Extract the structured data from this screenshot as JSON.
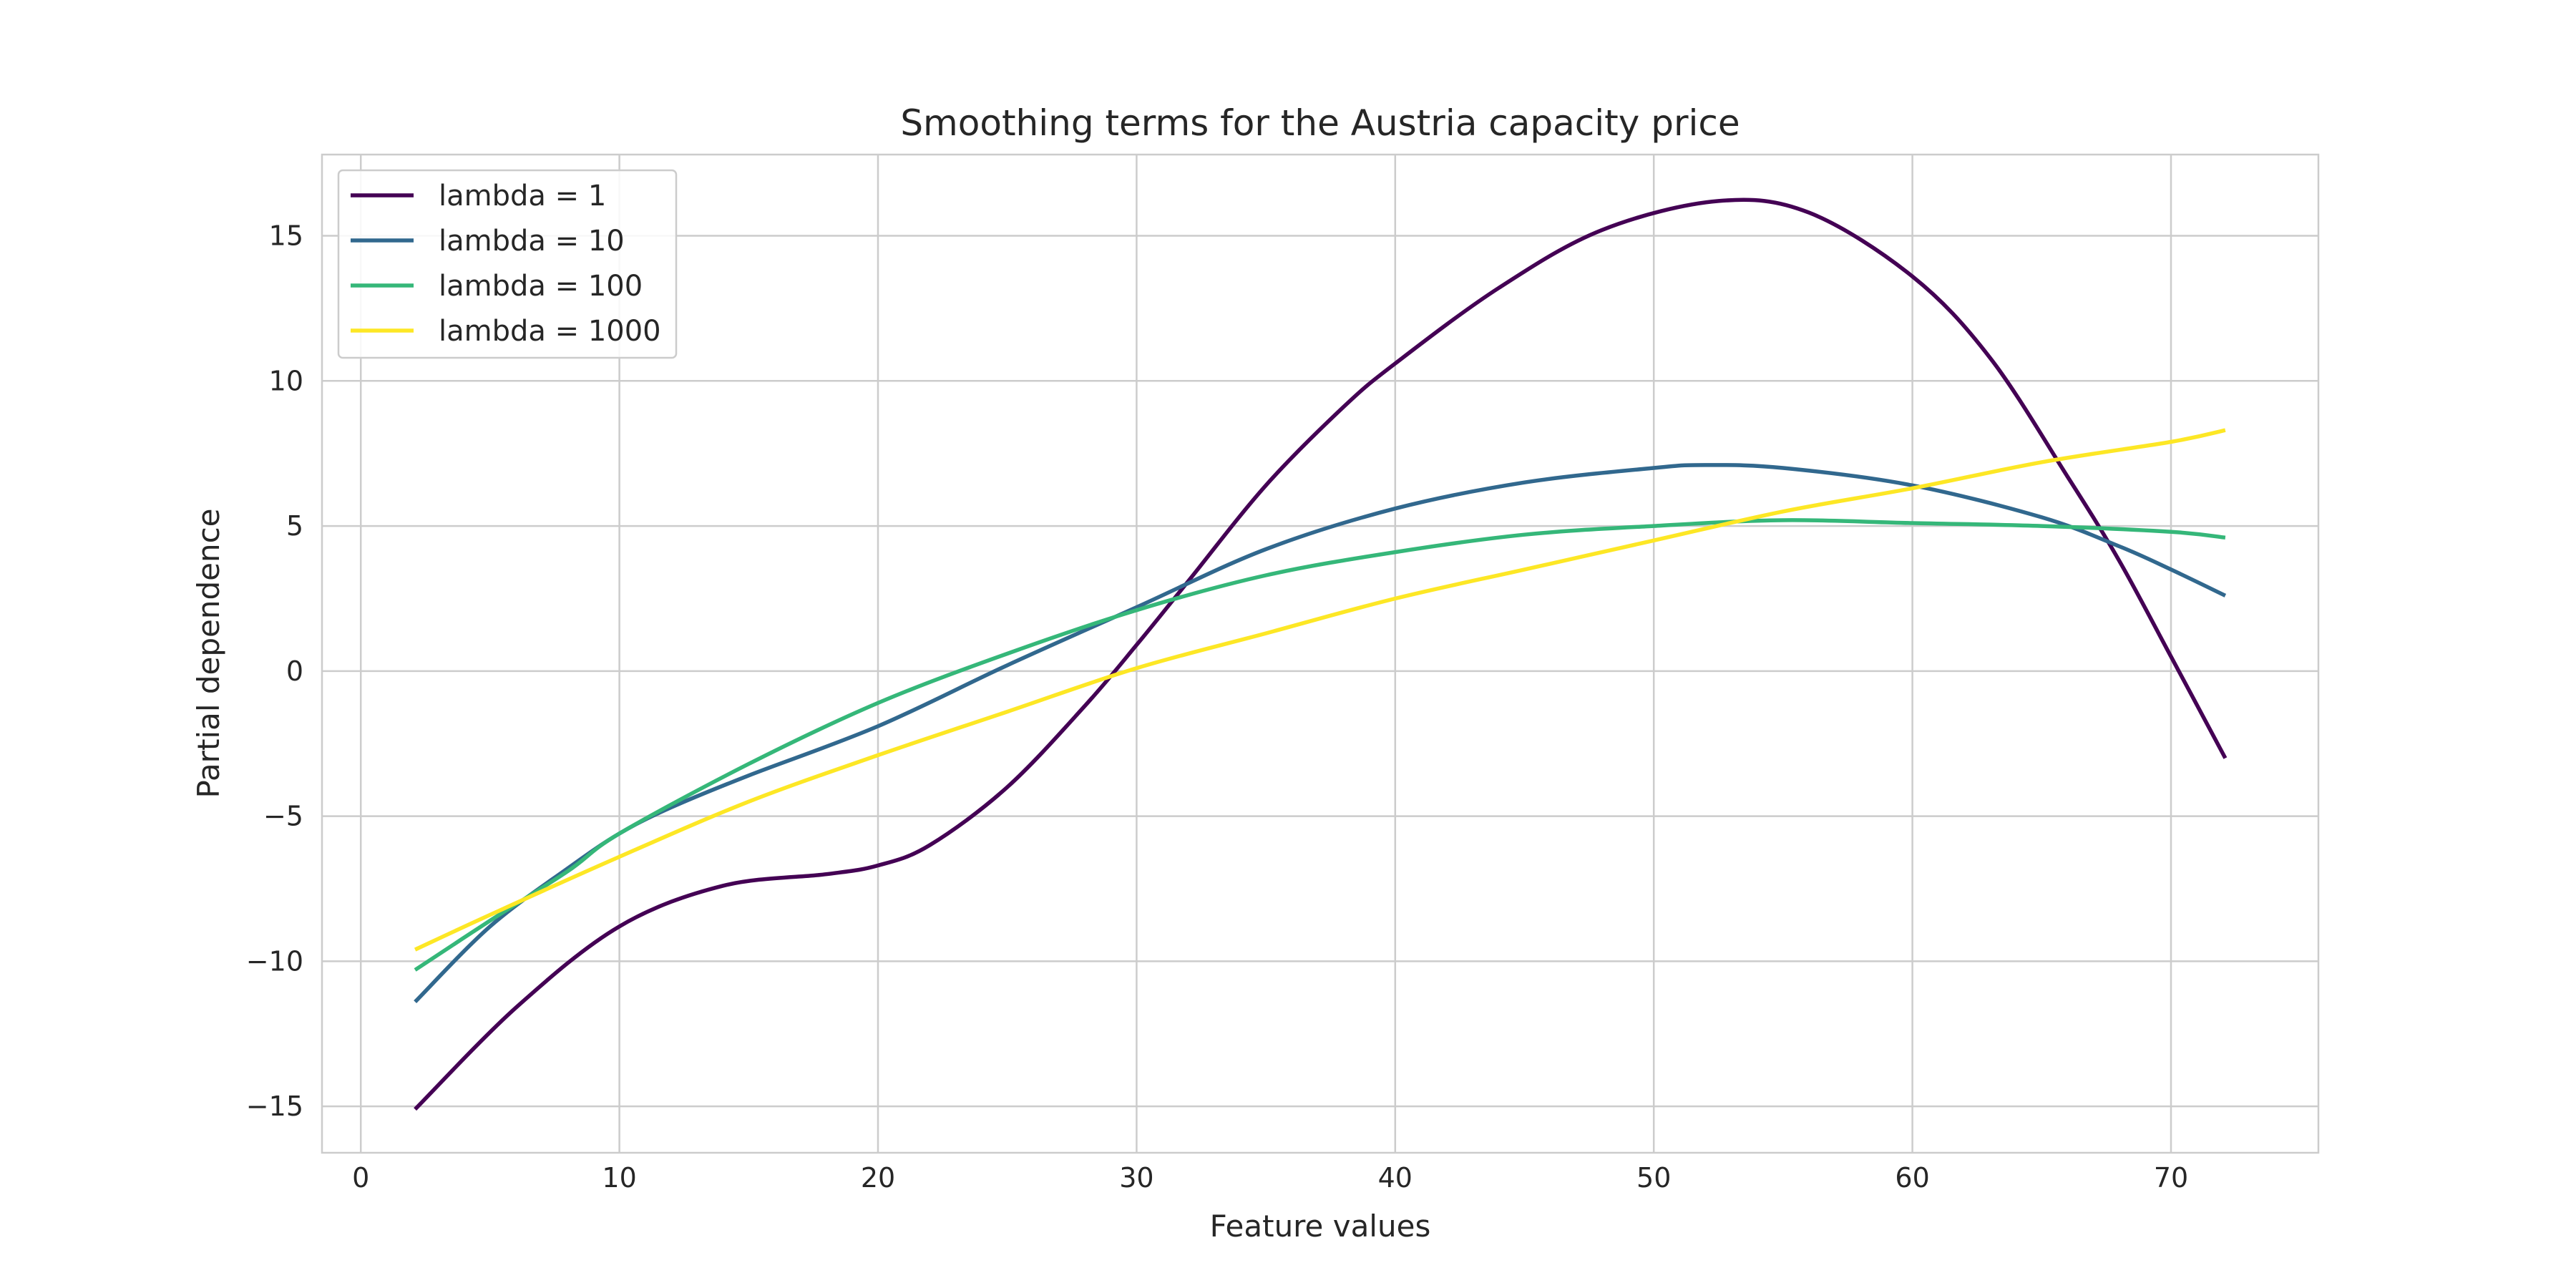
{
  "chart_data": {
    "type": "line",
    "title": "Smoothing terms for the Austria capacity price",
    "xlabel": "Feature values",
    "ylabel": "Partial dependence",
    "xlim": [
      -1.5,
      75.7
    ],
    "ylim": [
      -16.6,
      17.8
    ],
    "xticks": [
      0,
      10,
      20,
      30,
      40,
      50,
      60,
      70
    ],
    "yticks": [
      -15,
      -10,
      -5,
      0,
      5,
      10,
      15
    ],
    "xtick_labels": [
      "0",
      "10",
      "20",
      "30",
      "40",
      "50",
      "60",
      "70"
    ],
    "ytick_labels": [
      "−15",
      "−10",
      "−5",
      "0",
      "5",
      "10",
      "15"
    ],
    "grid": true,
    "legend_position": "top-left",
    "series": [
      {
        "name": "lambda = 1",
        "color": "#440154",
        "x": [
          2.1,
          6,
          10,
          14,
          18,
          20,
          22,
          25,
          28,
          30,
          32,
          35,
          38,
          40,
          44,
          48,
          52.5,
          56,
          60,
          63,
          66,
          68,
          70,
          72.1
        ],
        "y": [
          -15.1,
          -11.6,
          -8.8,
          -7.4,
          -7.0,
          -6.7,
          -6.0,
          -4.0,
          -1.2,
          0.9,
          3.1,
          6.4,
          9.1,
          10.6,
          13.2,
          15.2,
          16.2,
          15.8,
          13.6,
          10.8,
          6.7,
          3.8,
          0.5,
          -3.0
        ]
      },
      {
        "name": "lambda = 10",
        "color": "#31688e",
        "x": [
          2.1,
          5,
          8,
          10,
          12,
          15,
          20,
          25,
          30,
          35,
          40,
          45,
          50,
          52,
          55,
          60,
          65,
          68,
          70,
          72.1
        ],
        "y": [
          -11.4,
          -8.8,
          -6.8,
          -5.6,
          -4.7,
          -3.6,
          -1.9,
          0.2,
          2.2,
          4.2,
          5.6,
          6.5,
          7.0,
          7.1,
          7.0,
          6.4,
          5.3,
          4.3,
          3.5,
          2.6
        ]
      },
      {
        "name": "lambda = 100",
        "color": "#35b779",
        "x": [
          2.1,
          5,
          8,
          10,
          15,
          20,
          25,
          30,
          35,
          40,
          45,
          50,
          55,
          60,
          65,
          70,
          72.1
        ],
        "y": [
          -10.3,
          -8.6,
          -6.9,
          -5.6,
          -3.2,
          -1.1,
          0.6,
          2.1,
          3.3,
          4.1,
          4.7,
          5.0,
          5.2,
          5.1,
          5.0,
          4.8,
          4.6
        ]
      },
      {
        "name": "lambda = 1000",
        "color": "#fde725",
        "x": [
          2.1,
          5,
          10,
          15,
          20,
          25,
          30,
          35,
          40,
          45,
          50,
          55,
          60,
          65,
          70,
          72.1
        ],
        "y": [
          -9.6,
          -8.4,
          -6.4,
          -4.5,
          -2.9,
          -1.4,
          0.1,
          1.3,
          2.5,
          3.5,
          4.5,
          5.5,
          6.3,
          7.2,
          7.9,
          8.3
        ]
      }
    ]
  }
}
